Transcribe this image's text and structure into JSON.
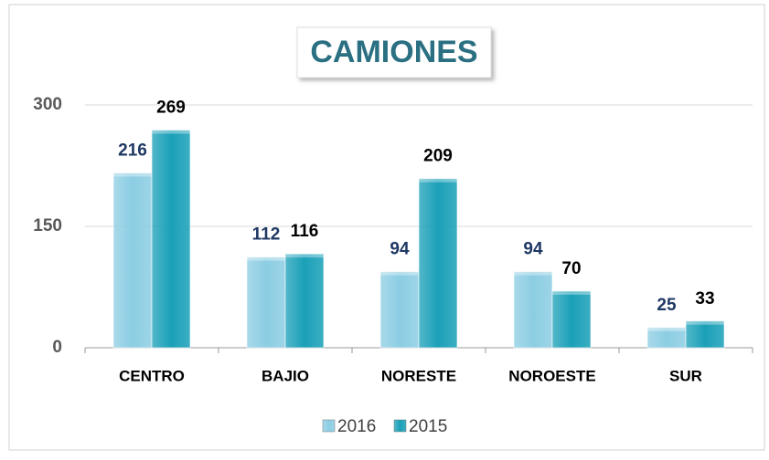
{
  "chart_data": {
    "type": "bar",
    "title": "CAMIONES",
    "categories": [
      "CENTRO",
      "BAJIO",
      "NORESTE",
      "NOROESTE",
      "SUR"
    ],
    "series": [
      {
        "name": "2016",
        "color": "#8ccde3",
        "values": [
          216,
          112,
          94,
          94,
          25
        ]
      },
      {
        "name": "2015",
        "color": "#1aa0b8",
        "values": [
          269,
          116,
          209,
          70,
          33
        ]
      }
    ],
    "ylim": [
      0,
      300
    ],
    "yticks": [
      0,
      150,
      300
    ],
    "grid": true,
    "legend": "bottom"
  }
}
